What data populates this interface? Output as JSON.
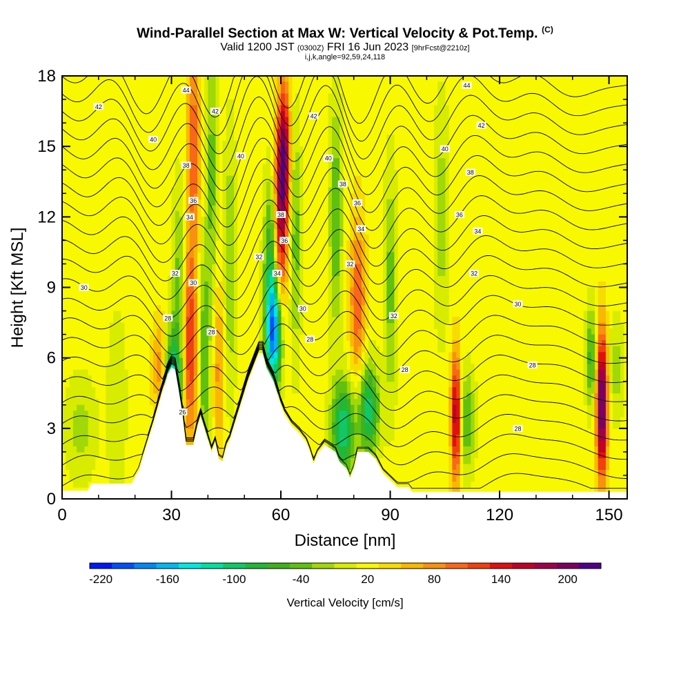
{
  "header": {
    "title_main": "Wind-Parallel Section at Max W: Vertical Velocity & Pot.Temp.",
    "title_units": "(C)",
    "valid_prefix": "Valid 1200 JST",
    "valid_utc": "(0300Z)",
    "valid_date": "FRI 16 Jun 2023",
    "forecast_info": "[9hrFcst@2210z]",
    "params": "i,j,k,angle=92,59,24,118"
  },
  "chart_data": {
    "type": "heatmap",
    "title": "Wind-Parallel Section at Max W: Vertical Velocity & Pot.Temp.",
    "xlabel": "Distance [nm]",
    "ylabel": "Height [Kft MSL]",
    "xlim": [
      0,
      155
    ],
    "ylim": [
      0,
      18
    ],
    "x_ticks": [
      "0",
      "30",
      "60",
      "90",
      "120",
      "150"
    ],
    "x_tick_values": [
      0,
      30,
      60,
      90,
      120,
      150
    ],
    "y_ticks": [
      "0",
      "3",
      "6",
      "9",
      "12",
      "15",
      "18"
    ],
    "y_tick_values": [
      0,
      3,
      6,
      9,
      12,
      15,
      18
    ],
    "background_value": 20,
    "terrain": [
      [
        0,
        0.35
      ],
      [
        7,
        0.35
      ],
      [
        8,
        0.65
      ],
      [
        19,
        0.65
      ],
      [
        21,
        1.2
      ],
      [
        23,
        2.2
      ],
      [
        25,
        3.2
      ],
      [
        27,
        4.3
      ],
      [
        29,
        5.3
      ],
      [
        30,
        5.6
      ],
      [
        31,
        5.5
      ],
      [
        32,
        4.6
      ],
      [
        33,
        3.6
      ],
      [
        34,
        2.3
      ],
      [
        36,
        2.3
      ],
      [
        37,
        3.0
      ],
      [
        38,
        3.5
      ],
      [
        39,
        3.0
      ],
      [
        40,
        2.5
      ],
      [
        41,
        2.0
      ],
      [
        42,
        2.4
      ],
      [
        43,
        1.7
      ],
      [
        44,
        1.6
      ],
      [
        45,
        2.2
      ],
      [
        46,
        2.5
      ],
      [
        47,
        3.0
      ],
      [
        49,
        4.0
      ],
      [
        51,
        5.0
      ],
      [
        53,
        5.8
      ],
      [
        54,
        6.2
      ],
      [
        55,
        6.2
      ],
      [
        56,
        5.6
      ],
      [
        58,
        5.0
      ],
      [
        59,
        4.5
      ],
      [
        60,
        4.0
      ],
      [
        61,
        3.6
      ],
      [
        63,
        3.1
      ],
      [
        65,
        2.8
      ],
      [
        67,
        2.4
      ],
      [
        68,
        2.0
      ],
      [
        69,
        1.5
      ],
      [
        70,
        1.9
      ],
      [
        72,
        2.3
      ],
      [
        75,
        2.0
      ],
      [
        76,
        1.6
      ],
      [
        78,
        1.3
      ],
      [
        79,
        0.9
      ],
      [
        80,
        1.3
      ],
      [
        81,
        2.0
      ],
      [
        84,
        2.0
      ],
      [
        86,
        1.7
      ],
      [
        88,
        1.1
      ],
      [
        90,
        0.8
      ],
      [
        92,
        0.5
      ],
      [
        95,
        0.5
      ],
      [
        96,
        0.3
      ],
      [
        155,
        0.3
      ]
    ],
    "w_features": [
      {
        "x": 30,
        "z": 4.5,
        "sx": 1.6,
        "sz": 1.8,
        "w": -160
      },
      {
        "x": 32,
        "z": 9.0,
        "sx": 1.2,
        "sz": 3.0,
        "w": -60
      },
      {
        "x": 27,
        "z": 5.5,
        "sx": 1.5,
        "sz": 1.5,
        "w": 70
      },
      {
        "x": 35,
        "z": 6.5,
        "sx": 1.3,
        "sz": 3.0,
        "w": 110
      },
      {
        "x": 36,
        "z": 15.0,
        "sx": 1.2,
        "sz": 3.0,
        "w": 90
      },
      {
        "x": 39,
        "z": 6.0,
        "sx": 1.0,
        "sz": 3.5,
        "w": -70
      },
      {
        "x": 41,
        "z": 14.0,
        "sx": 1.0,
        "sz": 4.0,
        "w": -60
      },
      {
        "x": 43,
        "z": 5.5,
        "sx": 1.0,
        "sz": 2.5,
        "w": 60
      },
      {
        "x": 46,
        "z": 10.0,
        "sx": 1.2,
        "sz": 4.0,
        "w": -50
      },
      {
        "x": 58,
        "z": 7.0,
        "sx": 1.5,
        "sz": 1.6,
        "w": -190
      },
      {
        "x": 57,
        "z": 10.0,
        "sx": 1.2,
        "sz": 2.5,
        "w": -90
      },
      {
        "x": 60,
        "z": 12.5,
        "sx": 1.2,
        "sz": 2.8,
        "w": 150
      },
      {
        "x": 61,
        "z": 15.0,
        "sx": 1.0,
        "sz": 2.0,
        "w": 120
      },
      {
        "x": 64,
        "z": 11.0,
        "sx": 1.0,
        "sz": 3.5,
        "w": -60
      },
      {
        "x": 77,
        "z": 3.0,
        "sx": 2.2,
        "sz": 1.4,
        "w": -130
      },
      {
        "x": 84,
        "z": 3.8,
        "sx": 2.0,
        "sz": 1.4,
        "w": -120
      },
      {
        "x": 81,
        "z": 8.5,
        "sx": 1.4,
        "sz": 2.5,
        "w": 90
      },
      {
        "x": 75,
        "z": 12.0,
        "sx": 1.2,
        "sz": 3.5,
        "w": -70
      },
      {
        "x": 90,
        "z": 9.0,
        "sx": 1.2,
        "sz": 3.5,
        "w": -60
      },
      {
        "x": 108,
        "z": 3.5,
        "sx": 0.9,
        "sz": 1.9,
        "w": 160
      },
      {
        "x": 111,
        "z": 3.3,
        "sx": 1.5,
        "sz": 1.5,
        "w": -70
      },
      {
        "x": 104,
        "z": 12.0,
        "sx": 1.5,
        "sz": 3.5,
        "w": -40
      },
      {
        "x": 148,
        "z": 4.0,
        "sx": 1.0,
        "sz": 2.2,
        "w": 215
      },
      {
        "x": 145,
        "z": 6.0,
        "sx": 1.0,
        "sz": 1.5,
        "w": -80
      },
      {
        "x": 152,
        "z": 5.5,
        "sx": 1.5,
        "sz": 1.5,
        "w": -40
      },
      {
        "x": 5,
        "z": 3.0,
        "sx": 3.0,
        "sz": 1.5,
        "w": -40
      },
      {
        "x": 15,
        "z": 4.0,
        "sx": 2.0,
        "sz": 3.0,
        "w": -25
      }
    ],
    "theta_contours": {
      "interval": 1,
      "labeled": [
        {
          "value": 26,
          "label": "26",
          "x": 33,
          "z": 3.7
        },
        {
          "value": 28,
          "label": "28",
          "x": 29,
          "z": 7.7
        },
        {
          "value": 28,
          "label": "28",
          "x": 41,
          "z": 7.1
        },
        {
          "value": 28,
          "label": "28",
          "x": 68,
          "z": 6.8
        },
        {
          "value": 28,
          "label": "28",
          "x": 94,
          "z": 5.5
        },
        {
          "value": 28,
          "label": "28",
          "x": 129,
          "z": 5.7
        },
        {
          "value": 28,
          "label": "28",
          "x": 125,
          "z": 3.0
        },
        {
          "value": 30,
          "label": "30",
          "x": 6,
          "z": 9.0
        },
        {
          "value": 30,
          "label": "30",
          "x": 36,
          "z": 9.2
        },
        {
          "value": 30,
          "label": "30",
          "x": 66,
          "z": 8.1
        },
        {
          "value": 30,
          "label": "30",
          "x": 125,
          "z": 8.3
        },
        {
          "value": 32,
          "label": "32",
          "x": 31,
          "z": 9.6
        },
        {
          "value": 32,
          "label": "32",
          "x": 54,
          "z": 10.3
        },
        {
          "value": 32,
          "label": "32",
          "x": 79,
          "z": 10.0
        },
        {
          "value": 32,
          "label": "32",
          "x": 91,
          "z": 7.8
        },
        {
          "value": 32,
          "label": "32",
          "x": 113,
          "z": 9.6
        },
        {
          "value": 34,
          "label": "34",
          "x": 35,
          "z": 12.0
        },
        {
          "value": 34,
          "label": "34",
          "x": 59,
          "z": 9.6
        },
        {
          "value": 34,
          "label": "34",
          "x": 82,
          "z": 11.5
        },
        {
          "value": 34,
          "label": "34",
          "x": 114,
          "z": 11.4
        },
        {
          "value": 36,
          "label": "36",
          "x": 36,
          "z": 12.7
        },
        {
          "value": 36,
          "label": "36",
          "x": 61,
          "z": 11.0
        },
        {
          "value": 36,
          "label": "36",
          "x": 81,
          "z": 12.6
        },
        {
          "value": 36,
          "label": "36",
          "x": 109,
          "z": 12.1
        },
        {
          "value": 38,
          "label": "38",
          "x": 34,
          "z": 14.2
        },
        {
          "value": 38,
          "label": "38",
          "x": 60,
          "z": 12.1
        },
        {
          "value": 38,
          "label": "38",
          "x": 77,
          "z": 13.4
        },
        {
          "value": 38,
          "label": "38",
          "x": 112,
          "z": 13.9
        },
        {
          "value": 40,
          "label": "40",
          "x": 25,
          "z": 15.3
        },
        {
          "value": 40,
          "label": "40",
          "x": 49,
          "z": 14.6
        },
        {
          "value": 40,
          "label": "40",
          "x": 73,
          "z": 14.5
        },
        {
          "value": 40,
          "label": "40",
          "x": 105,
          "z": 14.9
        },
        {
          "value": 42,
          "label": "42",
          "x": 10,
          "z": 16.7
        },
        {
          "value": 42,
          "label": "42",
          "x": 42,
          "z": 16.5
        },
        {
          "value": 42,
          "label": "42",
          "x": 69,
          "z": 16.3
        },
        {
          "value": 42,
          "label": "42",
          "x": 115,
          "z": 15.9
        },
        {
          "value": 44,
          "label": "44",
          "x": 34,
          "z": 17.4
        },
        {
          "value": 44,
          "label": "44",
          "x": 111,
          "z": 17.6
        }
      ]
    },
    "colorbar": {
      "label": "Vertical Velocity [cm/s]",
      "min": -230,
      "max": 230,
      "step": 20,
      "tick_labels": [
        "-220",
        "-160",
        "-100",
        "-40",
        "20",
        "80",
        "140",
        "200"
      ],
      "tick_values": [
        -220,
        -160,
        -100,
        -40,
        20,
        80,
        140,
        200
      ],
      "colors": [
        "#0018f8",
        "#0050f8",
        "#0088f8",
        "#00b8f0",
        "#00e8e0",
        "#00e0a0",
        "#10c868",
        "#20b838",
        "#40b020",
        "#60c010",
        "#a0d808",
        "#d8ec00",
        "#f8f800",
        "#f8dc00",
        "#f8b800",
        "#f89010",
        "#f86818",
        "#f04010",
        "#e01010",
        "#c00028",
        "#a00048",
        "#7c0060",
        "#500088"
      ]
    }
  }
}
